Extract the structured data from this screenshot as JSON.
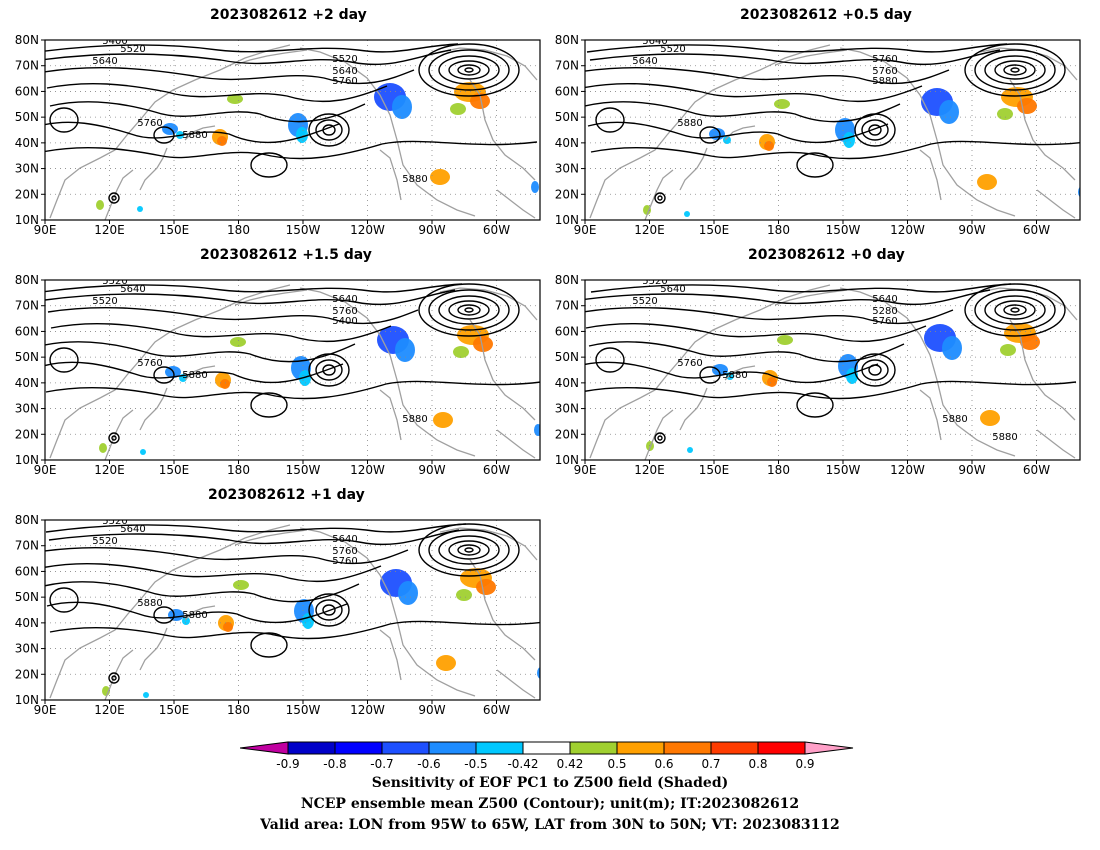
{
  "panels": [
    {
      "id": "p2",
      "title": "2023082612 +2 day",
      "contour_labels": [
        "5400",
        "5520",
        "5640",
        "5520",
        "5640",
        "5760",
        "5760",
        "5880",
        "5880"
      ]
    },
    {
      "id": "p05",
      "title": "2023082612 +0.5 day",
      "contour_labels": [
        "5640",
        "5520",
        "5640",
        "5760",
        "5760",
        "5880",
        "5880"
      ]
    },
    {
      "id": "p15",
      "title": "2023082612 +1.5 day",
      "contour_labels": [
        "5520",
        "5640",
        "5520",
        "5640",
        "5760",
        "5400",
        "5760",
        "5880",
        "5880"
      ]
    },
    {
      "id": "p0",
      "title": "2023082612 +0 day",
      "contour_labels": [
        "5520",
        "5640",
        "5520",
        "5640",
        "5280",
        "5760",
        "5760",
        "5880",
        "5880",
        "5880"
      ]
    },
    {
      "id": "p1",
      "title": "2023082612 +1 day",
      "contour_labels": [
        "5520",
        "5640",
        "5520",
        "5640",
        "5760",
        "5760",
        "5880",
        "5880"
      ]
    }
  ],
  "axes": {
    "lat_ticks": [
      "80N",
      "70N",
      "60N",
      "50N",
      "40N",
      "30N",
      "20N",
      "10N"
    ],
    "lon_ticks": [
      "90E",
      "120E",
      "150E",
      "180",
      "150W",
      "120W",
      "90W",
      "60W"
    ]
  },
  "colorbar": {
    "labels": [
      "-0.9",
      "-0.8",
      "-0.7",
      "-0.6",
      "-0.5",
      "-0.42",
      "0.42",
      "0.5",
      "0.6",
      "0.7",
      "0.8",
      "0.9"
    ],
    "colors": [
      "#0000c8",
      "#0000ff",
      "#1e50ff",
      "#1e8cff",
      "#00c8ff",
      "#ffffff",
      "#a0d030",
      "#ffa000",
      "#ff7800",
      "#ff3c00",
      "#ff0000"
    ],
    "low_extend_color": "#c000a0",
    "high_extend_color": "#ffa0c8"
  },
  "shading_colors": {
    "blue_dark": "#1e50ff",
    "blue_light": "#1e8cff",
    "cyan": "#00c8ff",
    "green": "#a0d030",
    "orange": "#ffa000",
    "red_orange": "#ff7800",
    "coast": "#a0a0a0"
  },
  "caption": {
    "line1": "Sensitivity of EOF PC1 to Z500 field (Shaded)",
    "line2": "NCEP ensemble mean Z500 (Contour); unit(m); IT:2023082612",
    "line3": "Valid area: LON from 95W to 65W, LAT from 30N to 50N; VT: 2023083112"
  }
}
